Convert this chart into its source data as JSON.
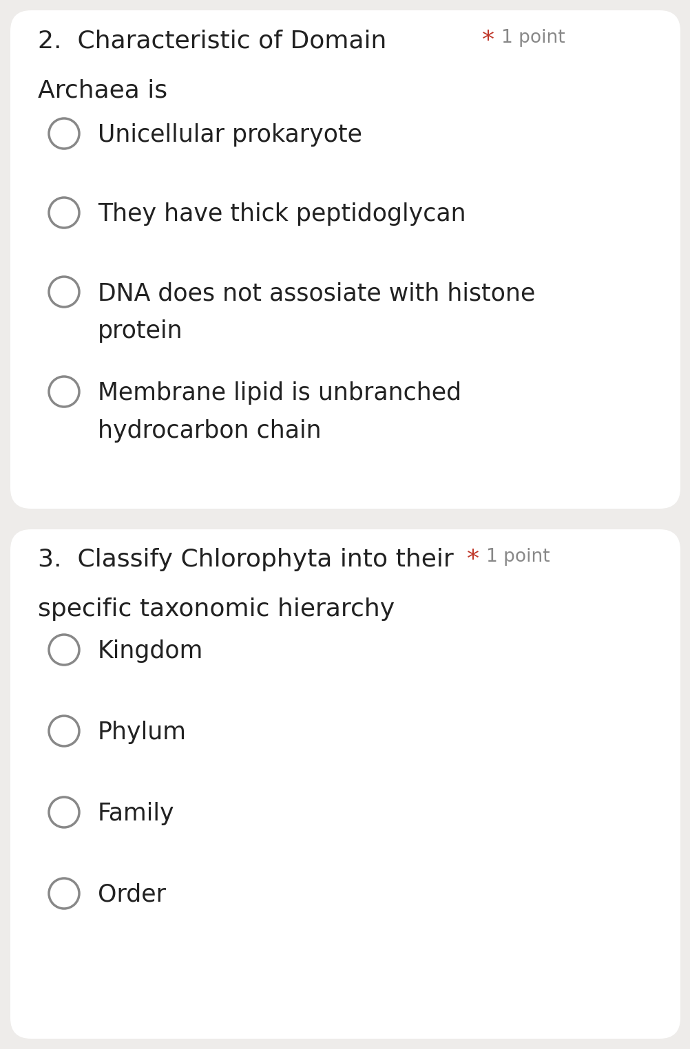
{
  "bg_color": "#eeecea",
  "card_color": "#ffffff",
  "text_color": "#212121",
  "star_color": "#c0392b",
  "point_text_color": "#888888",
  "circle_edge_color": "#888888",
  "question1": {
    "number": "2.",
    "title_line1": "Characteristic of Domain",
    "title_line2": "Archaea is",
    "star": "*",
    "point": "1 point",
    "options": [
      [
        "Unicellular prokaryote"
      ],
      [
        "They have thick peptidoglycan"
      ],
      [
        "DNA does not assosiate with histone",
        "protein"
      ],
      [
        "Membrane lipid is unbranched",
        "hydrocarbon chain"
      ]
    ]
  },
  "question2": {
    "number": "3.",
    "title_line1": "Classify Chlorophyta into their",
    "title_line2": "specific taxonomic hierarchy",
    "star": "*",
    "point": "1 point",
    "options": [
      [
        "Kingdom"
      ],
      [
        "Phylum"
      ],
      [
        "Family"
      ],
      [
        "Order"
      ]
    ]
  },
  "title_fontsize": 26,
  "option_fontsize": 25,
  "point_fontsize": 19,
  "dpi": 100,
  "fig_width": 10.03,
  "fig_height": 15.24
}
